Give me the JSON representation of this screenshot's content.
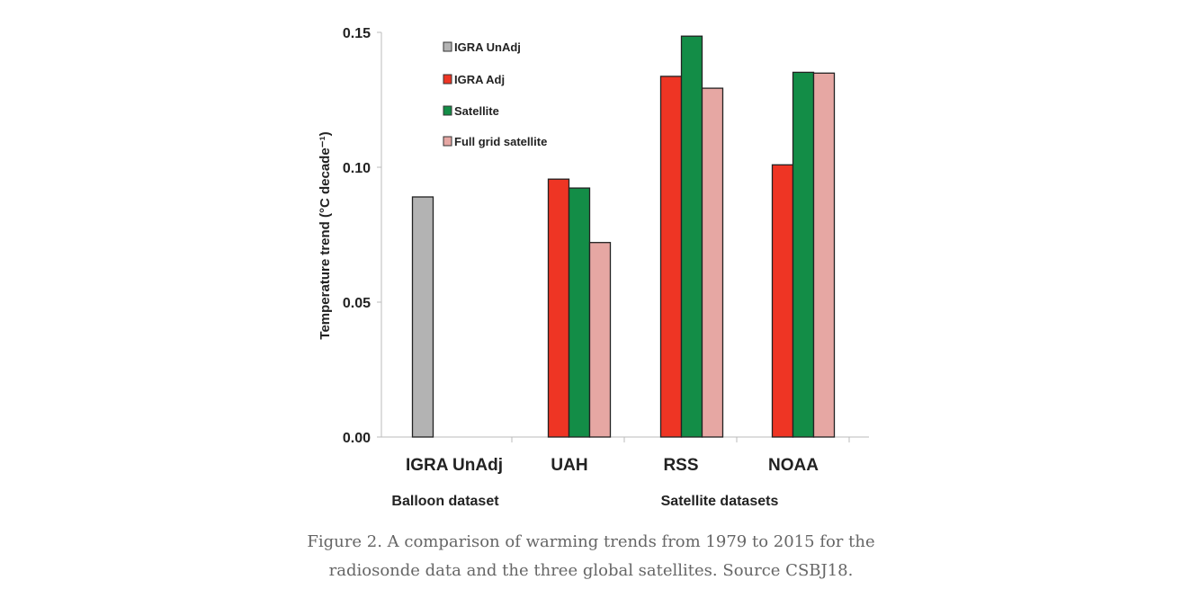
{
  "chart_data": {
    "type": "bar",
    "ylabel": "Temperature trend (°C decade⁻¹)",
    "ylim": [
      0,
      0.15
    ],
    "yticks": [
      "0.00",
      "0.05",
      "0.10",
      "0.15"
    ],
    "categories": [
      "IGRA UnAdj",
      "UAH",
      "RSS",
      "NOAA"
    ],
    "group_labels": [
      "Balloon dataset",
      "Satellite datasets"
    ],
    "legend_position": "top-left",
    "series": [
      {
        "name": "IGRA UnAdj",
        "color": "#b3b3b3",
        "values": [
          0.089,
          null,
          null,
          null
        ]
      },
      {
        "name": "IGRA Adj",
        "color": "#ee3524",
        "values": [
          null,
          0.0956,
          0.1337,
          0.1009
        ]
      },
      {
        "name": "Satellite",
        "color": "#138d47",
        "values": [
          null,
          0.0923,
          0.1486,
          0.1352
        ]
      },
      {
        "name": "Full grid satellite",
        "color": "#e6a7a3",
        "values": [
          null,
          0.0721,
          0.1293,
          0.1349
        ]
      }
    ]
  },
  "caption": {
    "line1": "Figure 2. A comparison of warming trends from 1979 to 2015 for the",
    "line2": "radiosonde data and the three global satellites. Source CSBJ18."
  }
}
